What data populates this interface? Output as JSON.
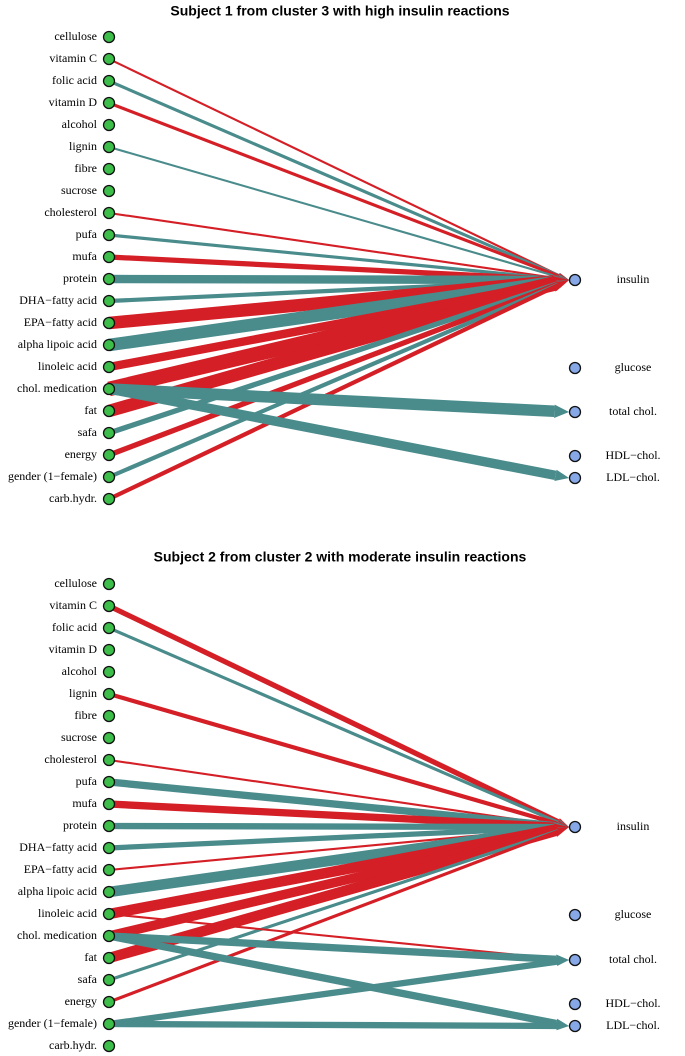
{
  "colors": {
    "positive": "#d41f26",
    "negative": "#4a8b8c",
    "input_node": "#3dbe4a",
    "output_node": "#86a8e6",
    "node_stroke": "#111111"
  },
  "panels": [
    {
      "title": "Subject 1 from cluster 3 with high insulin reactions",
      "inputs": [
        "cellulose",
        "vitamin C",
        "folic acid",
        "vitamin D",
        "alcohol",
        "lignin",
        "fibre",
        "sucrose",
        "cholesterol",
        "pufa",
        "mufa",
        "protein",
        "DHA−fatty acid",
        "EPA−fatty acid",
        "alpha lipoic acid",
        "linoleic acid",
        "chol. medication",
        "fat",
        "safa",
        "energy",
        "gender (1−female)",
        "carb.hydr."
      ],
      "outputs": [
        "insulin",
        "glucose",
        "total chol.",
        "HDL−chol.",
        "LDL−chol."
      ],
      "edges": [
        {
          "from": "vitamin C",
          "to": "insulin",
          "sign": "positive",
          "weight": 2
        },
        {
          "from": "folic acid",
          "to": "insulin",
          "sign": "negative",
          "weight": 3
        },
        {
          "from": "vitamin D",
          "to": "insulin",
          "sign": "positive",
          "weight": 3
        },
        {
          "from": "lignin",
          "to": "insulin",
          "sign": "negative",
          "weight": 2
        },
        {
          "from": "cholesterol",
          "to": "insulin",
          "sign": "positive",
          "weight": 2
        },
        {
          "from": "pufa",
          "to": "insulin",
          "sign": "negative",
          "weight": 3
        },
        {
          "from": "mufa",
          "to": "insulin",
          "sign": "positive",
          "weight": 5
        },
        {
          "from": "protein",
          "to": "insulin",
          "sign": "negative",
          "weight": 8
        },
        {
          "from": "DHA−fatty acid",
          "to": "insulin",
          "sign": "negative",
          "weight": 4
        },
        {
          "from": "EPA−fatty acid",
          "to": "insulin",
          "sign": "positive",
          "weight": 12
        },
        {
          "from": "alpha lipoic acid",
          "to": "insulin",
          "sign": "negative",
          "weight": 12
        },
        {
          "from": "linoleic acid",
          "to": "insulin",
          "sign": "positive",
          "weight": 8
        },
        {
          "from": "chol. medication",
          "to": "insulin",
          "sign": "positive",
          "weight": 14
        },
        {
          "from": "fat",
          "to": "insulin",
          "sign": "positive",
          "weight": 12
        },
        {
          "from": "safa",
          "to": "insulin",
          "sign": "negative",
          "weight": 5
        },
        {
          "from": "energy",
          "to": "insulin",
          "sign": "positive",
          "weight": 5
        },
        {
          "from": "gender (1−female)",
          "to": "insulin",
          "sign": "negative",
          "weight": 4
        },
        {
          "from": "carb.hydr.",
          "to": "insulin",
          "sign": "positive",
          "weight": 4
        },
        {
          "from": "chol. medication",
          "to": "total chol.",
          "sign": "negative",
          "weight": 11
        },
        {
          "from": "chol. medication",
          "to": "LDL−chol.",
          "sign": "negative",
          "weight": 9
        }
      ]
    },
    {
      "title": "Subject 2 from cluster 2 with moderate insulin reactions",
      "inputs": [
        "cellulose",
        "vitamin C",
        "folic acid",
        "vitamin D",
        "alcohol",
        "lignin",
        "fibre",
        "sucrose",
        "cholesterol",
        "pufa",
        "mufa",
        "protein",
        "DHA−fatty acid",
        "EPA−fatty acid",
        "alpha lipoic acid",
        "linoleic acid",
        "chol. medication",
        "fat",
        "safa",
        "energy",
        "gender (1−female)",
        "carb.hydr."
      ],
      "outputs": [
        "insulin",
        "glucose",
        "total chol.",
        "HDL−chol.",
        "LDL−chol."
      ],
      "edges": [
        {
          "from": "vitamin C",
          "to": "insulin",
          "sign": "positive",
          "weight": 5
        },
        {
          "from": "folic acid",
          "to": "insulin",
          "sign": "negative",
          "weight": 3
        },
        {
          "from": "lignin",
          "to": "insulin",
          "sign": "positive",
          "weight": 4
        },
        {
          "from": "cholesterol",
          "to": "insulin",
          "sign": "positive",
          "weight": 2
        },
        {
          "from": "pufa",
          "to": "insulin",
          "sign": "negative",
          "weight": 7
        },
        {
          "from": "mufa",
          "to": "insulin",
          "sign": "positive",
          "weight": 7
        },
        {
          "from": "protein",
          "to": "insulin",
          "sign": "negative",
          "weight": 6
        },
        {
          "from": "DHA−fatty acid",
          "to": "insulin",
          "sign": "negative",
          "weight": 5
        },
        {
          "from": "EPA−fatty acid",
          "to": "insulin",
          "sign": "positive",
          "weight": 2
        },
        {
          "from": "alpha lipoic acid",
          "to": "insulin",
          "sign": "negative",
          "weight": 10
        },
        {
          "from": "linoleic acid",
          "to": "insulin",
          "sign": "positive",
          "weight": 10
        },
        {
          "from": "chol. medication",
          "to": "insulin",
          "sign": "positive",
          "weight": 9
        },
        {
          "from": "fat",
          "to": "insulin",
          "sign": "positive",
          "weight": 10
        },
        {
          "from": "safa",
          "to": "insulin",
          "sign": "negative",
          "weight": 3
        },
        {
          "from": "energy",
          "to": "insulin",
          "sign": "positive",
          "weight": 3
        },
        {
          "from": "linoleic acid",
          "to": "total chol.",
          "sign": "positive",
          "weight": 2
        },
        {
          "from": "chol. medication",
          "to": "total chol.",
          "sign": "negative",
          "weight": 7
        },
        {
          "from": "chol. medication",
          "to": "LDL−chol.",
          "sign": "negative",
          "weight": 7
        },
        {
          "from": "gender (1−female)",
          "to": "total chol.",
          "sign": "negative",
          "weight": 6
        },
        {
          "from": "gender (1−female)",
          "to": "LDL−chol.",
          "sign": "negative",
          "weight": 6
        }
      ]
    }
  ]
}
